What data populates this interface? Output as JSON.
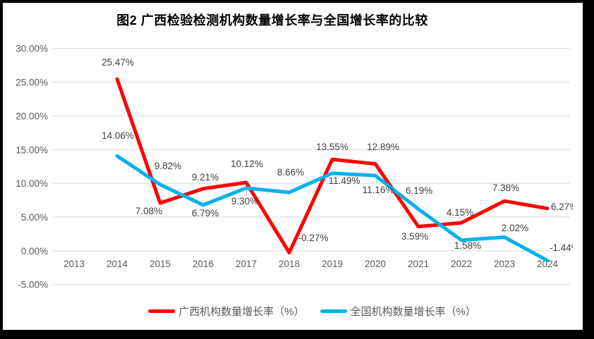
{
  "chart": {
    "title": "图2 广西检验检测机构数量增长率与全国增长率的比较"
  },
  "chart_data": {
    "type": "line",
    "title": "图2 广西检验检测机构数量增长率与全国增长率的比较",
    "categories": [
      "2013",
      "2014",
      "2015",
      "2016",
      "2017",
      "2018",
      "2019",
      "2020",
      "2021",
      "2022",
      "2023",
      "2024"
    ],
    "series": [
      {
        "name": "广西机构数量增长率（%）",
        "color": "#FF0000",
        "values": [
          null,
          25.47,
          7.08,
          9.21,
          10.12,
          -0.27,
          13.55,
          12.89,
          3.59,
          4.15,
          7.38,
          6.27
        ]
      },
      {
        "name": "全国机构数量增长率（%）",
        "color": "#00B0F0",
        "values": [
          null,
          14.06,
          9.82,
          6.79,
          9.3,
          8.66,
          11.49,
          11.16,
          6.19,
          1.58,
          2.02,
          -1.44
        ]
      }
    ],
    "xlabel": "",
    "ylabel": "",
    "ylim": [
      -5,
      30
    ],
    "y_step": 5,
    "y_tick_labels": [
      "30.00%",
      "25.00%",
      "20.00%",
      "15.00%",
      "10.00%",
      "5.00%",
      "0.00%",
      "-5.00%"
    ],
    "grid": true,
    "data_labels": true,
    "legend_position": "bottom"
  },
  "legend": {
    "items": [
      {
        "label": "广西机构数量增长率（%）",
        "color": "#FF0000"
      },
      {
        "label": "全国机构数量增长率（%）",
        "color": "#00B0F0"
      }
    ]
  },
  "colors": {
    "gridline": "#D9D9D9",
    "tick_text": "#595959",
    "data_label_text": "#404040",
    "leader_line": "#A6A6A6",
    "frame": "#000000"
  }
}
